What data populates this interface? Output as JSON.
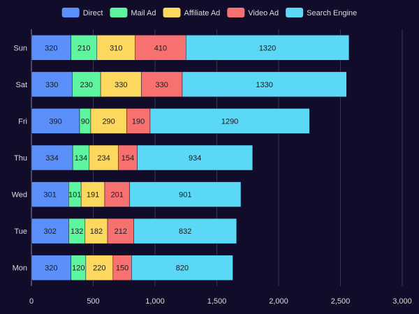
{
  "chart_data": {
    "type": "bar",
    "orientation": "horizontal",
    "stacked": true,
    "categories": [
      "Mon",
      "Tue",
      "Wed",
      "Thu",
      "Fri",
      "Sat",
      "Sun"
    ],
    "series": [
      {
        "name": "Direct",
        "color": "#5b8ff9",
        "values": [
          320,
          302,
          301,
          334,
          390,
          330,
          320
        ]
      },
      {
        "name": "Mail Ad",
        "color": "#5ef5a0",
        "values": [
          120,
          132,
          101,
          134,
          90,
          230,
          210
        ]
      },
      {
        "name": "Affiliate Ad",
        "color": "#fdd85e",
        "values": [
          220,
          182,
          191,
          234,
          290,
          330,
          310
        ]
      },
      {
        "name": "Video Ad",
        "color": "#f87171",
        "values": [
          150,
          212,
          201,
          154,
          190,
          330,
          410
        ]
      },
      {
        "name": "Search Engine",
        "color": "#5ad8f5",
        "values": [
          820,
          832,
          901,
          934,
          1290,
          1330,
          1320
        ]
      }
    ],
    "xlim": [
      0,
      3000
    ],
    "x_ticks": [
      0,
      500,
      1000,
      1500,
      2000,
      2500,
      3000
    ],
    "x_tick_labels": [
      "0",
      "500",
      "1,000",
      "1,500",
      "2,000",
      "2,500",
      "3,000"
    ],
    "grid": true,
    "legend_position": "top",
    "data_labels": true,
    "colors": {
      "background": "#100c2a",
      "text": "#dcdcdc",
      "grid": "#3a3752",
      "label": "#1a1a1a"
    }
  }
}
